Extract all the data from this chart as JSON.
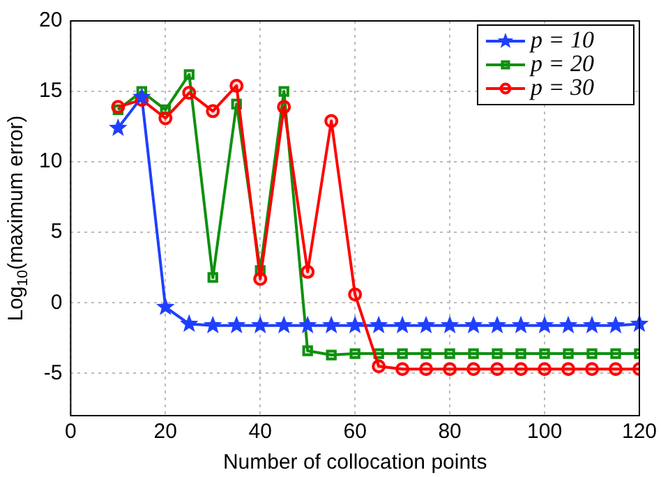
{
  "chart_data": {
    "type": "line",
    "xlabel": "Number of collocation points",
    "ylabel": "Log$_{10}$(maximum error)",
    "x": [
      10,
      15,
      20,
      25,
      30,
      35,
      40,
      45,
      50,
      55,
      60,
      65,
      70,
      75,
      80,
      85,
      90,
      95,
      100,
      105,
      110,
      115,
      120
    ],
    "series": [
      {
        "name": "p = 10",
        "color": "#1f3fff",
        "marker": "star",
        "values": [
          12.4,
          14.6,
          -0.3,
          -1.5,
          -1.6,
          -1.6,
          -1.6,
          -1.6,
          -1.6,
          -1.6,
          -1.6,
          -1.6,
          -1.6,
          -1.6,
          -1.6,
          -1.6,
          -1.6,
          -1.6,
          -1.6,
          -1.6,
          -1.6,
          -1.6,
          -1.5
        ]
      },
      {
        "name": "p = 20",
        "color": "#109010",
        "marker": "square",
        "values": [
          13.7,
          15.0,
          13.7,
          16.2,
          1.8,
          14.1,
          2.3,
          15.0,
          -3.4,
          -3.7,
          -3.6,
          -3.6,
          -3.6,
          -3.6,
          -3.6,
          -3.6,
          -3.6,
          -3.6,
          -3.6,
          -3.6,
          -3.6,
          -3.6,
          -3.6
        ]
      },
      {
        "name": "p = 30",
        "color": "#ff0000",
        "marker": "circle",
        "values": [
          13.9,
          14.4,
          13.1,
          14.9,
          13.6,
          15.4,
          1.7,
          13.9,
          2.2,
          12.9,
          0.6,
          -4.5,
          -4.7,
          -4.7,
          -4.7,
          -4.7,
          -4.7,
          -4.7,
          -4.7,
          -4.7,
          -4.7,
          -4.7,
          -4.7
        ]
      }
    ],
    "xlim": [
      0,
      120
    ],
    "xticks": [
      0,
      20,
      40,
      60,
      80,
      100,
      120
    ],
    "ylim": [
      -8,
      20
    ],
    "yticks": [
      -5,
      0,
      5,
      10,
      15,
      20
    ],
    "grid": true,
    "legend": "top right",
    "line_style": "solid"
  }
}
